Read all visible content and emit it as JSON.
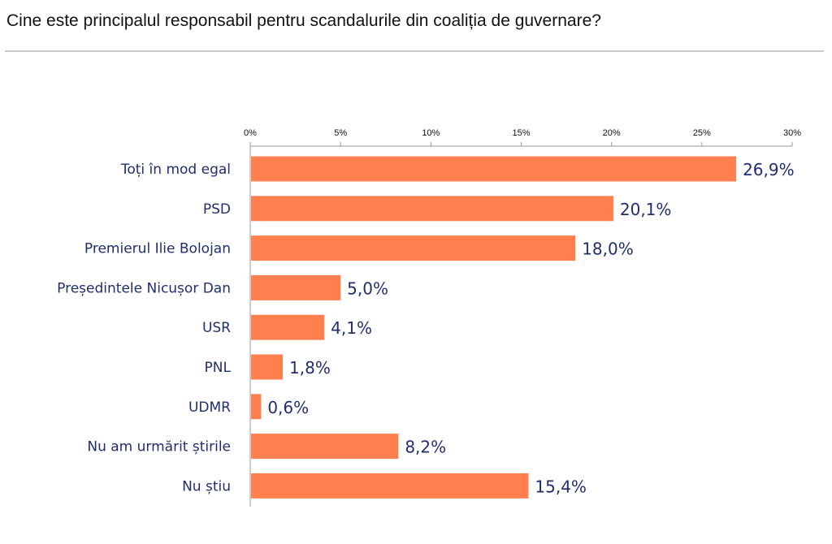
{
  "header": {
    "title": "Cine este principalul responsabil pentru scandalurile din coaliția de guvernare?"
  },
  "chart_data": {
    "type": "bar",
    "orientation": "horizontal",
    "title": "Cine este principalul responsabil pentru scandalurile din coaliția de guvernare?",
    "categories": [
      "Toți în mod egal",
      "PSD",
      "Premierul Ilie Bolojan",
      "Președintele Nicușor Dan",
      "USR",
      "PNL",
      "UDMR",
      "Nu am urmărit știrile",
      "Nu știu"
    ],
    "values": [
      26.9,
      20.1,
      18.0,
      5.0,
      4.1,
      1.8,
      0.6,
      8.2,
      15.4
    ],
    "value_labels": [
      "26,9%",
      "20,1%",
      "18,0%",
      "5,0%",
      "4,1%",
      "1,8%",
      "0,6%",
      "8,2%",
      "15,4%"
    ],
    "xlim": [
      0,
      30
    ],
    "ticks": [
      0,
      5,
      10,
      15,
      20,
      25,
      30
    ],
    "tick_labels": [
      "0%",
      "5%",
      "10%",
      "15%",
      "20%",
      "25%",
      "30%"
    ],
    "axis_position": "top",
    "grid": false,
    "bar_color": "#ff7f4f",
    "label_color": "#1f2f6e"
  }
}
